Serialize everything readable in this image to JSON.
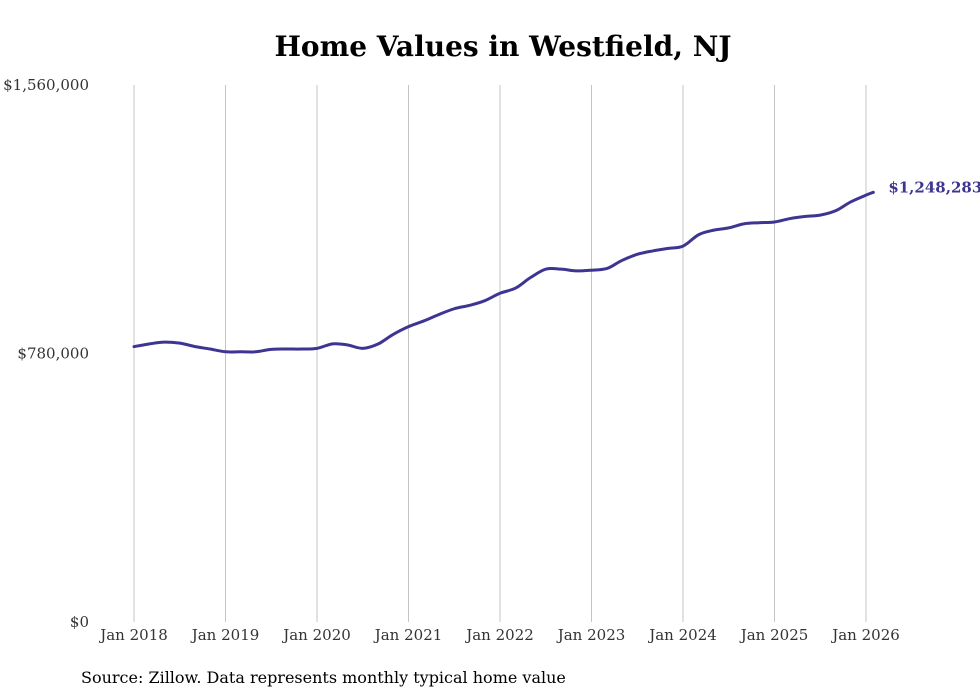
{
  "chart_data": {
    "type": "line",
    "title": "Home Values in Westfield, NJ",
    "xlabel": "",
    "ylabel": "",
    "ylim": [
      0,
      1560000
    ],
    "y_ticks": [
      0,
      780000,
      1560000
    ],
    "y_tick_labels": [
      "$0",
      "$780,000",
      "$1,560,000"
    ],
    "x_tick_labels": [
      "Jan 2018",
      "Jan 2019",
      "Jan 2020",
      "Jan 2021",
      "Jan 2022",
      "Jan 2023",
      "Jan 2024",
      "Jan 2025",
      "Jan 2026"
    ],
    "x_tick_positions": [
      2018.0,
      2019.0,
      2020.0,
      2021.0,
      2022.0,
      2023.0,
      2024.0,
      2025.0,
      2026.0
    ],
    "xlim": [
      2018.0,
      2026.08
    ],
    "grid": "vertical",
    "series": [
      {
        "name": "Typical home value",
        "color": "#3d3591",
        "x": [
          2018.0,
          2018.17,
          2018.33,
          2018.5,
          2018.67,
          2018.83,
          2019.0,
          2019.17,
          2019.33,
          2019.5,
          2019.67,
          2019.83,
          2020.0,
          2020.17,
          2020.33,
          2020.5,
          2020.67,
          2020.83,
          2021.0,
          2021.17,
          2021.33,
          2021.5,
          2021.67,
          2021.83,
          2022.0,
          2022.17,
          2022.33,
          2022.5,
          2022.67,
          2022.83,
          2023.0,
          2023.17,
          2023.33,
          2023.5,
          2023.67,
          2023.83,
          2024.0,
          2024.17,
          2024.33,
          2024.5,
          2024.67,
          2024.83,
          2025.0,
          2025.17,
          2025.33,
          2025.5,
          2025.67,
          2025.83,
          2026.0,
          2026.08
        ],
        "values": [
          800000,
          808000,
          813000,
          810000,
          800000,
          793000,
          785000,
          785000,
          785000,
          792000,
          793000,
          793000,
          795000,
          808000,
          805000,
          795000,
          808000,
          835000,
          858000,
          875000,
          893000,
          910000,
          920000,
          933000,
          955000,
          970000,
          1000000,
          1025000,
          1025000,
          1020000,
          1022000,
          1027000,
          1050000,
          1068000,
          1078000,
          1085000,
          1092000,
          1125000,
          1138000,
          1145000,
          1157000,
          1160000,
          1162000,
          1172000,
          1178000,
          1182000,
          1195000,
          1220000,
          1240000,
          1248283
        ]
      }
    ],
    "end_label": "$1,248,283"
  },
  "source_note": "Source: Zillow. Data represents monthly typical home value"
}
